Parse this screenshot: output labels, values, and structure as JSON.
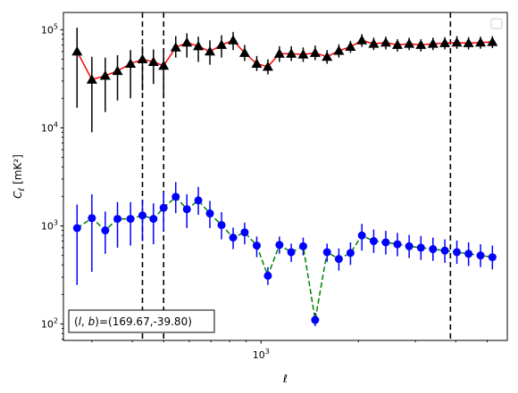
{
  "chart_data": {
    "type": "line",
    "xlabel": "ℓ",
    "ylabel": "C",
    "ylabel_sub": "ℓ",
    "ylabel_units": "[mK²]",
    "xscale": "log",
    "yscale": "log",
    "xlim": [
      245,
      5770
    ],
    "ylim": [
      68,
      150000
    ],
    "grid": false,
    "legend": "top-right",
    "x_tick_labels": [
      {
        "x": 1000,
        "base": "10",
        "exp": "3"
      }
    ],
    "y_tick_labels": [
      {
        "y": 100,
        "base": "10",
        "exp": "2"
      },
      {
        "y": 1000,
        "base": "10",
        "exp": "3"
      },
      {
        "y": 10000,
        "base": "10",
        "exp": "4"
      },
      {
        "y": 100000,
        "base": "10",
        "exp": "5"
      }
    ],
    "vertical_lines": [
      430,
      500,
      3850
    ],
    "annotation": "(l, b)=(169.67,-39.80)",
    "annotation_prefix": "(",
    "annotation_var1": "l",
    "annotation_var2": "b",
    "annotation_suffix": ")=(169.67,-39.80)",
    "series": [
      {
        "color": "#ff0000",
        "linestyle": "solid",
        "marker": "triangle",
        "marker_color": "#000000",
        "x": [
          270,
          300,
          330,
          360,
          395,
          430,
          465,
          500,
          545,
          590,
          640,
          695,
          755,
          820,
          890,
          970,
          1050,
          1140,
          1240,
          1350,
          1470,
          1600,
          1740,
          1890,
          2050,
          2230,
          2430,
          2640,
          2870,
          3120,
          3400,
          3700,
          4030,
          4380,
          4770,
          5190
        ],
        "y": [
          60000,
          31000,
          34000,
          38000,
          45000,
          50000,
          47000,
          43000,
          66000,
          74000,
          68000,
          60000,
          70000,
          78000,
          58000,
          45000,
          42000,
          57000,
          57000,
          56000,
          58000,
          53000,
          61000,
          67000,
          78000,
          72000,
          74000,
          70000,
          72000,
          70000,
          72000,
          73000,
          74000,
          73000,
          74000,
          75000
        ],
        "err_low": [
          16000,
          9000,
          14500,
          19000,
          20000,
          24000,
          28000,
          20000,
          52000,
          52000,
          47000,
          44000,
          52000,
          62000,
          48000,
          38000,
          35000,
          47000,
          48000,
          47000,
          49000,
          45000,
          52000,
          58000,
          67000,
          62000,
          63000,
          60000,
          62000,
          60000,
          62000,
          63000,
          64000,
          63000,
          64000,
          65000
        ],
        "err_high": [
          105000,
          53000,
          52000,
          55000,
          62000,
          68000,
          63000,
          62000,
          86000,
          92000,
          85000,
          78000,
          88000,
          95000,
          70000,
          54000,
          50000,
          68000,
          68000,
          66000,
          69000,
          62000,
          71000,
          77000,
          90000,
          83000,
          85000,
          80000,
          83000,
          80000,
          83000,
          84000,
          86000,
          84000,
          85000,
          86000
        ]
      },
      {
        "color": "#008000",
        "linestyle": "dashed",
        "marker": "circle",
        "marker_color": "#0000ff",
        "x": [
          270,
          300,
          330,
          360,
          395,
          430,
          465,
          500,
          545,
          590,
          640,
          695,
          755,
          820,
          890,
          970,
          1050,
          1140,
          1240,
          1350,
          1470,
          1600,
          1740,
          1890,
          2050,
          2230,
          2430,
          2640,
          2870,
          3120,
          3400,
          3700,
          4030,
          4380,
          4770,
          5190
        ],
        "y": [
          950,
          1200,
          900,
          1180,
          1180,
          1280,
          1180,
          1530,
          1980,
          1480,
          1820,
          1340,
          1020,
          760,
          860,
          630,
          310,
          640,
          540,
          620,
          110,
          540,
          460,
          530,
          800,
          700,
          680,
          650,
          620,
          600,
          580,
          560,
          540,
          520,
          500,
          480
        ],
        "err_low": [
          250,
          340,
          520,
          600,
          630,
          700,
          650,
          900,
          1350,
          950,
          1300,
          950,
          730,
          580,
          650,
          480,
          250,
          520,
          430,
          500,
          95,
          430,
          350,
          400,
          560,
          530,
          510,
          490,
          470,
          450,
          440,
          420,
          410,
          390,
          380,
          360
        ],
        "err_high": [
          1650,
          2100,
          1400,
          1750,
          1750,
          1850,
          1700,
          2200,
          2800,
          2100,
          2500,
          1800,
          1380,
          960,
          1080,
          780,
          380,
          780,
          660,
          760,
          130,
          660,
          590,
          680,
          1050,
          920,
          890,
          850,
          810,
          790,
          760,
          730,
          710,
          680,
          650,
          630
        ]
      }
    ]
  }
}
